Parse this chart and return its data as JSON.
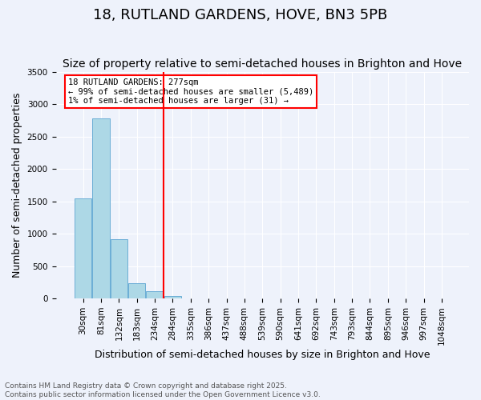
{
  "title": "18, RUTLAND GARDENS, HOVE, BN3 5PB",
  "subtitle": "Size of property relative to semi-detached houses in Brighton and Hove",
  "xlabel": "Distribution of semi-detached houses by size in Brighton and Hove",
  "ylabel": "Number of semi-detached properties",
  "footer_line1": "Contains HM Land Registry data © Crown copyright and database right 2025.",
  "footer_line2": "Contains public sector information licensed under the Open Government Licence v3.0.",
  "bins": [
    "30sqm",
    "81sqm",
    "132sqm",
    "183sqm",
    "234sqm",
    "284sqm",
    "335sqm",
    "386sqm",
    "437sqm",
    "488sqm",
    "539sqm",
    "590sqm",
    "641sqm",
    "692sqm",
    "743sqm",
    "793sqm",
    "844sqm",
    "895sqm",
    "946sqm",
    "997sqm",
    "1048sqm"
  ],
  "values": [
    1540,
    2780,
    920,
    230,
    110,
    40,
    0,
    0,
    0,
    0,
    0,
    0,
    0,
    0,
    0,
    0,
    0,
    0,
    0,
    0,
    0
  ],
  "bar_color": "#add8e6",
  "bar_edge_color": "#6baed6",
  "vline_bin_index": 5,
  "vline_color": "red",
  "annotation_line1": "18 RUTLAND GARDENS: 277sqm",
  "annotation_line2": "← 99% of semi-detached houses are smaller (5,489)",
  "annotation_line3": "1% of semi-detached houses are larger (31) →",
  "annotation_box_color": "white",
  "annotation_box_edge_color": "red",
  "ylim": [
    0,
    3500
  ],
  "yticks": [
    0,
    500,
    1000,
    1500,
    2000,
    2500,
    3000,
    3500
  ],
  "background_color": "#eef2fb",
  "plot_background_color": "#eef2fb",
  "grid_color": "white",
  "title_fontsize": 13,
  "subtitle_fontsize": 10,
  "label_fontsize": 9,
  "tick_fontsize": 7.5,
  "footer_fontsize": 6.5
}
